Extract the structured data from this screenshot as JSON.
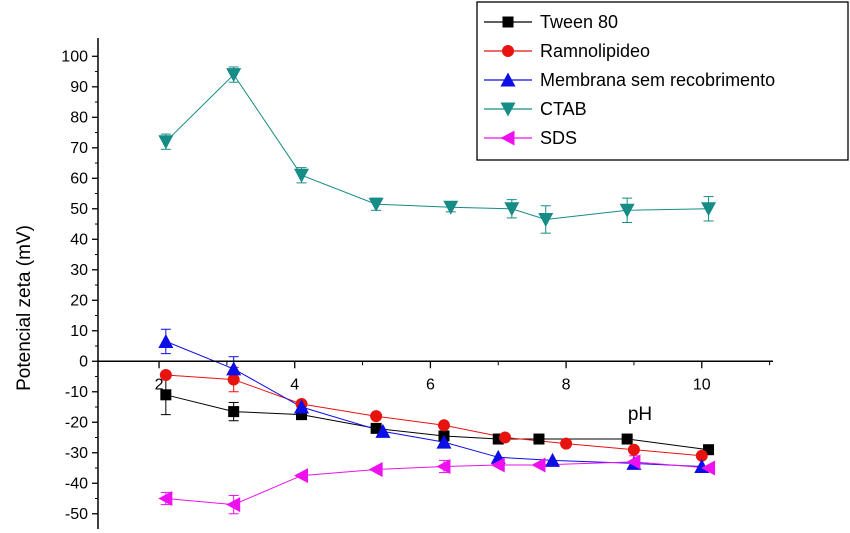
{
  "chart_data": {
    "type": "line",
    "xlabel": "pH",
    "ylabel": "Potencial zeta (mV)",
    "xlim": [
      1.1,
      11.05
    ],
    "ylim": [
      -55,
      106
    ],
    "xticks": [
      2,
      4,
      6,
      8,
      10
    ],
    "xtick_labels": [
      "2",
      "4",
      "6",
      "8",
      "10"
    ],
    "yticks": [
      -50,
      -40,
      -30,
      -20,
      -10,
      0,
      10,
      20,
      30,
      40,
      50,
      60,
      70,
      80,
      90,
      100
    ],
    "ytick_labels": [
      "-50",
      "-40",
      "-30",
      "-20",
      "-10",
      "0",
      "10",
      "20",
      "30",
      "40",
      "50",
      "60",
      "70",
      "80",
      "90",
      "100"
    ],
    "grid": false,
    "legend_position": "top-right",
    "series": [
      {
        "name": "Tween 80",
        "color": "#000000",
        "marker": "square",
        "x": [
          2.1,
          3.1,
          4.1,
          5.2,
          6.2,
          7.0,
          7.6,
          8.9,
          10.1
        ],
        "y": [
          -11,
          -16.5,
          -17.5,
          -22,
          -24.5,
          -25.5,
          -25.5,
          -25.5,
          -29
        ],
        "err": [
          6.5,
          3,
          1,
          1,
          1,
          1,
          0,
          0,
          0
        ]
      },
      {
        "name": "Ramnolipideo",
        "color": "#e8130f",
        "marker": "circle",
        "x": [
          2.1,
          3.1,
          4.1,
          5.2,
          6.2,
          7.1,
          8.0,
          9.0,
          10.0
        ],
        "y": [
          -4.5,
          -6,
          -14,
          -18,
          -21,
          -25,
          -27,
          -29,
          -31
        ],
        "err": [
          0,
          4,
          0,
          0,
          0,
          0,
          0,
          0,
          0
        ]
      },
      {
        "name": "Membrana sem recobrimento",
        "color": "#0d0de6",
        "marker": "triangle-up",
        "x": [
          2.1,
          3.1,
          4.1,
          5.3,
          6.2,
          7.0,
          7.8,
          9.0,
          10.0
        ],
        "y": [
          6.5,
          -2.5,
          -15,
          -23,
          -26.5,
          -31.5,
          -32.5,
          -33.5,
          -34.5
        ],
        "err": [
          4,
          4,
          0,
          0,
          0,
          0,
          0,
          0,
          0
        ]
      },
      {
        "name": "CTAB",
        "color": "#158c86",
        "marker": "triangle-down",
        "x": [
          2.1,
          3.1,
          4.1,
          5.2,
          6.3,
          7.2,
          7.7,
          8.9,
          10.1
        ],
        "y": [
          72,
          94,
          61,
          51.5,
          50.5,
          50,
          46.5,
          49.5,
          50
        ],
        "err": [
          2.5,
          2.5,
          2.5,
          2,
          1.5,
          3,
          4.5,
          4,
          4
        ]
      },
      {
        "name": "SDS",
        "color": "#ee10ee",
        "marker": "triangle-left",
        "x": [
          2.1,
          3.1,
          4.1,
          5.2,
          6.2,
          7.0,
          7.6,
          9.0,
          10.1
        ],
        "y": [
          -45,
          -47,
          -37.5,
          -35.5,
          -34.5,
          -34,
          -34,
          -33,
          -35
        ],
        "err": [
          2,
          3,
          0,
          0,
          2,
          0,
          0,
          2,
          0
        ]
      }
    ]
  }
}
